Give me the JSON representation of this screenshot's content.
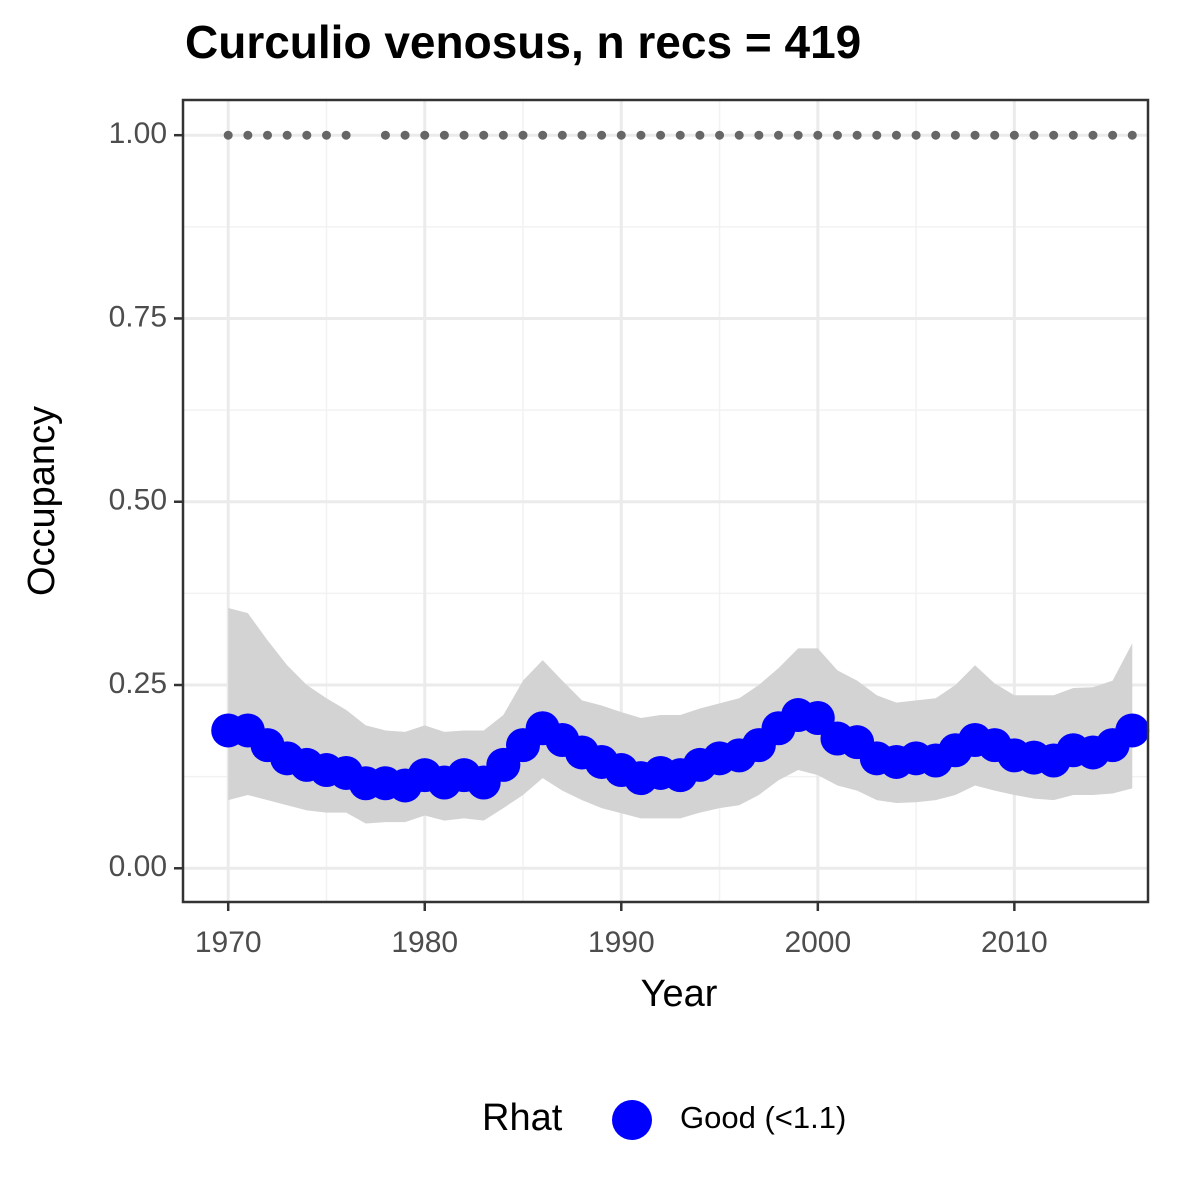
{
  "chart_data": {
    "type": "line",
    "title": "Curculio venosus, n recs = 419",
    "x_label": "Year",
    "y_label": "Occupancy",
    "x": [
      1970,
      1971,
      1972,
      1973,
      1974,
      1975,
      1976,
      1977,
      1978,
      1979,
      1980,
      1981,
      1982,
      1983,
      1984,
      1985,
      1986,
      1987,
      1988,
      1989,
      1990,
      1991,
      1992,
      1993,
      1994,
      1995,
      1996,
      1997,
      1998,
      1999,
      2000,
      2001,
      2002,
      2003,
      2004,
      2005,
      2006,
      2007,
      2008,
      2009,
      2010,
      2011,
      2012,
      2013,
      2014,
      2015,
      2016
    ],
    "series": [
      {
        "name": "Good (<1.1)",
        "color": "#0000ff",
        "values": [
          0.188,
          0.188,
          0.168,
          0.15,
          0.141,
          0.134,
          0.13,
          0.116,
          0.116,
          0.113,
          0.127,
          0.117,
          0.127,
          0.117,
          0.141,
          0.168,
          0.191,
          0.175,
          0.158,
          0.145,
          0.134,
          0.123,
          0.13,
          0.127,
          0.141,
          0.15,
          0.154,
          0.168,
          0.191,
          0.209,
          0.205,
          0.177,
          0.172,
          0.15,
          0.145,
          0.15,
          0.147,
          0.161,
          0.175,
          0.168,
          0.154,
          0.151,
          0.147,
          0.161,
          0.158,
          0.168,
          0.188
        ],
        "lower": [
          0.093,
          0.1,
          0.093,
          0.086,
          0.079,
          0.076,
          0.076,
          0.061,
          0.063,
          0.063,
          0.072,
          0.065,
          0.068,
          0.065,
          0.082,
          0.1,
          0.123,
          0.106,
          0.093,
          0.082,
          0.075,
          0.068,
          0.068,
          0.068,
          0.076,
          0.082,
          0.086,
          0.1,
          0.12,
          0.134,
          0.127,
          0.113,
          0.106,
          0.093,
          0.089,
          0.09,
          0.093,
          0.1,
          0.113,
          0.106,
          0.1,
          0.095,
          0.093,
          0.1,
          0.1,
          0.102,
          0.109
        ],
        "upper": [
          0.355,
          0.348,
          0.311,
          0.277,
          0.25,
          0.232,
          0.216,
          0.195,
          0.188,
          0.186,
          0.195,
          0.186,
          0.188,
          0.188,
          0.209,
          0.256,
          0.284,
          0.256,
          0.229,
          0.222,
          0.213,
          0.205,
          0.209,
          0.209,
          0.218,
          0.225,
          0.232,
          0.25,
          0.273,
          0.3,
          0.3,
          0.27,
          0.256,
          0.236,
          0.226,
          0.229,
          0.232,
          0.25,
          0.277,
          0.252,
          0.236,
          0.236,
          0.236,
          0.246,
          0.247,
          0.256,
          0.307
        ]
      }
    ],
    "ribbon_color": "#d3d3d3",
    "points": {
      "color": "#666666",
      "values": [
        1,
        1,
        1,
        1,
        1,
        1,
        1,
        null,
        1,
        1,
        1,
        1,
        1,
        1,
        1,
        1,
        1,
        1,
        1,
        1,
        1,
        1,
        1,
        1,
        1,
        1,
        1,
        1,
        1,
        1,
        1,
        1,
        1,
        1,
        1,
        1,
        1,
        1,
        1,
        1,
        1,
        1,
        1,
        1,
        1,
        1,
        1
      ]
    },
    "legend_title": "Rhat",
    "legend": "bottom",
    "xlim": [
      1967.7,
      2016.8
    ],
    "ylim": [
      -0.046,
      1.048
    ],
    "xticks": [
      1970,
      1980,
      1990,
      2000,
      2010
    ],
    "yticks": [
      {
        "value": 0,
        "label": "0.00"
      },
      0.25,
      {
        "value": 0.5,
        "label": "0.50"
      },
      0.75,
      {
        "value": 1,
        "label": "1.00"
      }
    ],
    "grid": true
  }
}
